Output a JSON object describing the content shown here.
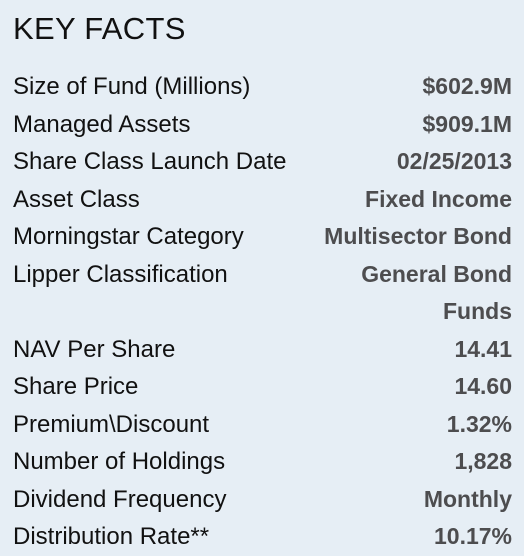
{
  "title": "KEY FACTS",
  "facts": [
    {
      "label": "Size of Fund (Millions)",
      "value": "$602.9M"
    },
    {
      "label": "Managed Assets",
      "value": "$909.1M"
    },
    {
      "label": "Share Class Launch Date",
      "value": "02/25/2013"
    },
    {
      "label": "Asset Class",
      "value": "Fixed Income"
    },
    {
      "label": "Morningstar Category",
      "value": "Multisector Bond"
    },
    {
      "label": "Lipper Classification",
      "value": "General Bond Funds"
    },
    {
      "label": "NAV Per Share",
      "value": "14.41"
    },
    {
      "label": "Share Price",
      "value": "14.60"
    },
    {
      "label": "Premium\\Discount",
      "value": "1.32%"
    },
    {
      "label": "Number of Holdings",
      "value": "1,828"
    },
    {
      "label": "Dividend Frequency",
      "value": "Monthly"
    },
    {
      "label": "Distribution Rate**",
      "value": "10.17%"
    }
  ]
}
